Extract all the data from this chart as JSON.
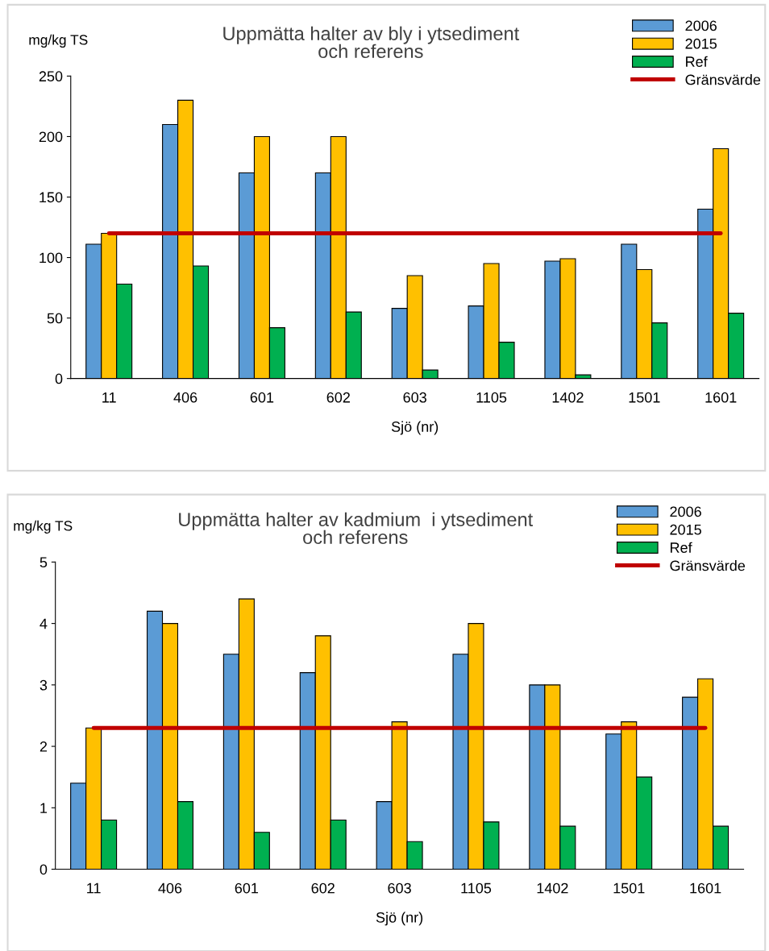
{
  "chart_data": [
    {
      "type": "bar",
      "title": "Uppmätta halter av bly i ytsediment\noch referens",
      "xlabel": "Sjö (nr)",
      "ylabel": "mg/kg TS",
      "categories": [
        "11",
        "406",
        "601",
        "602",
        "603",
        "1105",
        "1402",
        "1501",
        "1601"
      ],
      "series": [
        {
          "name": "2006",
          "color": "#5b9bd5",
          "values": [
            111,
            210,
            170,
            170,
            58,
            60,
            97,
            111,
            140
          ]
        },
        {
          "name": "2015",
          "color": "#ffc000",
          "values": [
            120,
            230,
            200,
            200,
            85,
            95,
            99,
            90,
            190
          ]
        },
        {
          "name": "Ref",
          "color": "#00b050",
          "values": [
            78,
            93,
            42,
            55,
            7,
            30,
            3,
            46,
            54
          ]
        },
        {
          "name": "Gränsvärde",
          "type": "line",
          "color": "#c00000",
          "values": [
            120,
            120,
            120,
            120,
            120,
            120,
            120,
            120,
            120
          ]
        }
      ],
      "ylim": [
        0,
        250
      ],
      "yticks": [
        0,
        50,
        100,
        150,
        200,
        250
      ],
      "grid": false,
      "legend": "top right"
    },
    {
      "type": "bar",
      "title": "Uppmätta halter av kadmium  i ytsediment\noch referens",
      "xlabel": "Sjö (nr)",
      "ylabel": "mg/kg TS",
      "categories": [
        "11",
        "406",
        "601",
        "602",
        "603",
        "1105",
        "1402",
        "1501",
        "1601"
      ],
      "series": [
        {
          "name": "2006",
          "color": "#5b9bd5",
          "values": [
            1.4,
            4.2,
            3.5,
            3.2,
            1.1,
            3.5,
            3.0,
            2.2,
            2.8
          ]
        },
        {
          "name": "2015",
          "color": "#ffc000",
          "values": [
            2.3,
            4.0,
            4.4,
            3.8,
            2.4,
            4.0,
            3.0,
            2.4,
            3.1
          ]
        },
        {
          "name": "Ref",
          "color": "#00b050",
          "values": [
            0.8,
            1.1,
            0.6,
            0.8,
            0.45,
            0.77,
            0.7,
            1.5,
            0.7
          ]
        },
        {
          "name": "Gränsvärde",
          "type": "line",
          "color": "#c00000",
          "values": [
            2.3,
            2.3,
            2.3,
            2.3,
            2.3,
            2.3,
            2.3,
            2.3,
            2.3
          ]
        }
      ],
      "ylim": [
        0,
        5
      ],
      "yticks": [
        0,
        1,
        2,
        3,
        4,
        5
      ],
      "grid": false,
      "legend": "top right"
    }
  ]
}
